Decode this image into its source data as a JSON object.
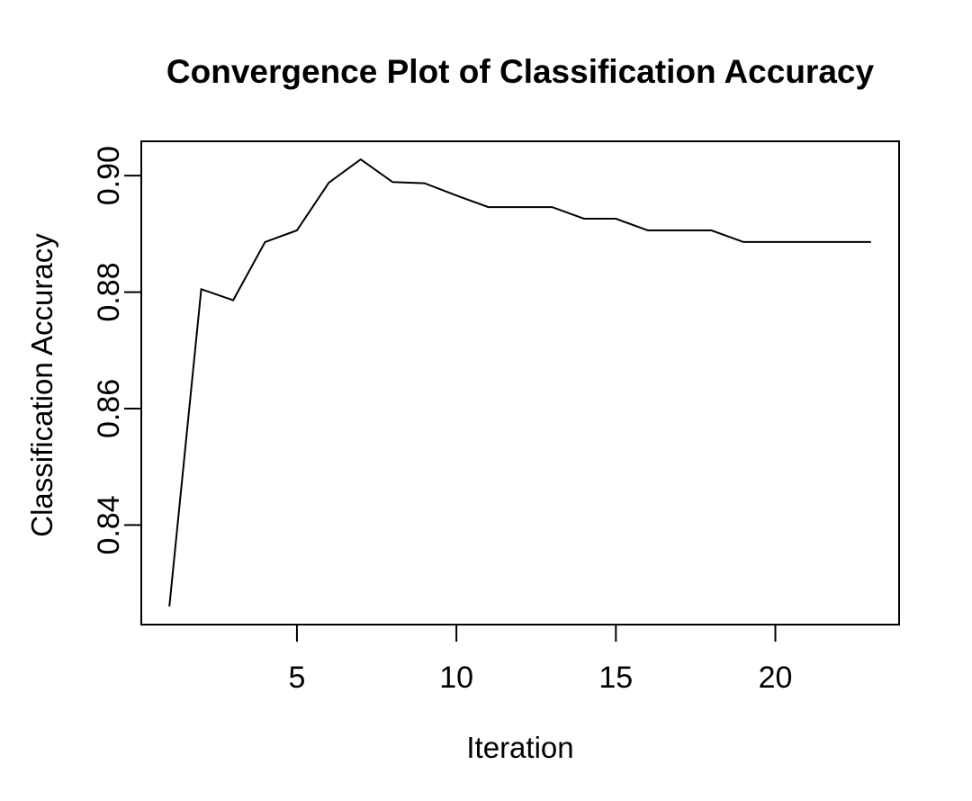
{
  "chart_data": {
    "type": "line",
    "title": "Convergence Plot of Classification Accuracy",
    "xlabel": "Iteration",
    "ylabel": "Classification Accuracy",
    "x": [
      1,
      2,
      3,
      4,
      5,
      6,
      7,
      8,
      9,
      10,
      11,
      12,
      13,
      14,
      15,
      16,
      17,
      18,
      19,
      20,
      21,
      22,
      23
    ],
    "y": [
      0.826,
      0.8805,
      0.8786,
      0.8886,
      0.8906,
      0.8988,
      0.9028,
      0.8989,
      0.8987,
      0.8966,
      0.8946,
      0.8946,
      0.8946,
      0.8926,
      0.8926,
      0.8906,
      0.8906,
      0.8906,
      0.8886,
      0.8886,
      0.8886,
      0.8886,
      0.8886
    ],
    "xticks": [
      5,
      10,
      15,
      20
    ],
    "xtick_labels": [
      "5",
      "10",
      "15",
      "20"
    ],
    "yticks": [
      0.84,
      0.86,
      0.88,
      0.9
    ],
    "ytick_labels": [
      "0.84",
      "0.86",
      "0.88",
      "0.90"
    ],
    "xlim": [
      0.12,
      23.88
    ],
    "ylim": [
      0.8229,
      0.9059
    ],
    "line_color": "#000000",
    "background_color": "#ffffff",
    "grid": false,
    "legend": null,
    "marker": "none"
  }
}
